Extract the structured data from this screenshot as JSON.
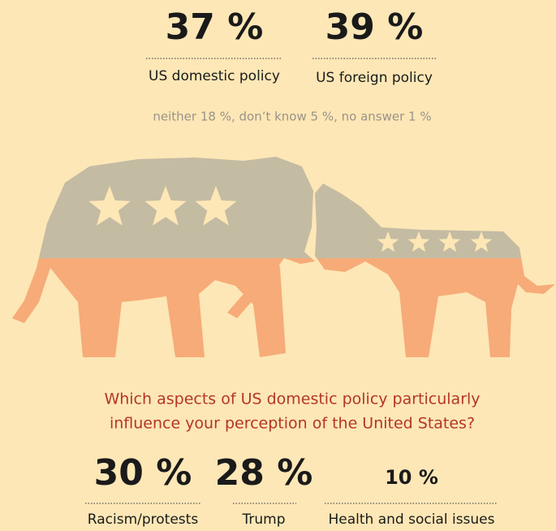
{
  "top_stats": [
    {
      "value": "37 %",
      "label": "US domestic policy"
    },
    {
      "value": "39 %",
      "label": "US foreign policy"
    }
  ],
  "other_answers": "neither 18 %, don’t know 5 %, no answer 1 %",
  "question": [
    "Which aspects of US domestic policy particularly",
    "influence your perception of the United States?"
  ],
  "bottom_stats": [
    {
      "value": "30 %",
      "label": "Racism/protests"
    },
    {
      "value": "28 %",
      "label": "Trump"
    },
    {
      "value": "10 %",
      "label": "Health and social issues"
    }
  ]
}
